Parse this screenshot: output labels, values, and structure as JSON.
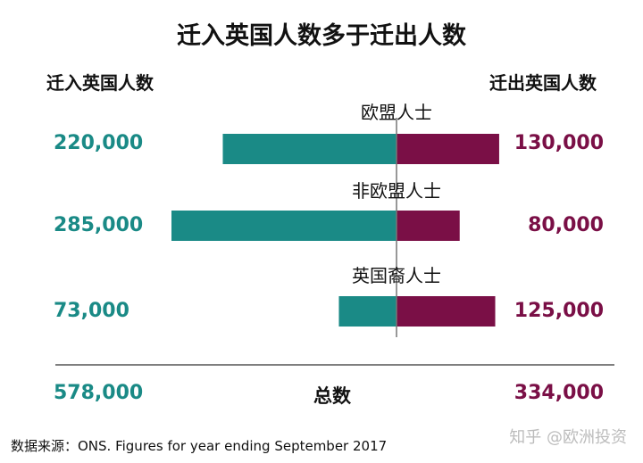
{
  "title": "迁入英国人数多于迁出人数",
  "header": {
    "left_label": "迁入英国人数",
    "right_label": "迁出英国人数"
  },
  "chart_data": {
    "type": "bar",
    "categories": [
      "欧盟人士",
      "非欧盟人士",
      "英国裔人士"
    ],
    "series": [
      {
        "name": "迁入英国人数",
        "values": [
          220000,
          285000,
          73000
        ],
        "labels": [
          "220,000",
          "285,000",
          "73,000"
        ],
        "color": "#1a8a86"
      },
      {
        "name": "迁出英国人数",
        "values": [
          130000,
          80000,
          125000
        ],
        "labels": [
          "130,000",
          "80,000",
          "125,000"
        ],
        "color": "#7a0f46"
      }
    ],
    "totals": {
      "label": "总数",
      "in": "578,000",
      "out": "334,000"
    }
  },
  "source": "数据来源：ONS. Figures for year ending September 2017",
  "watermark": "知乎 @欧洲投资"
}
